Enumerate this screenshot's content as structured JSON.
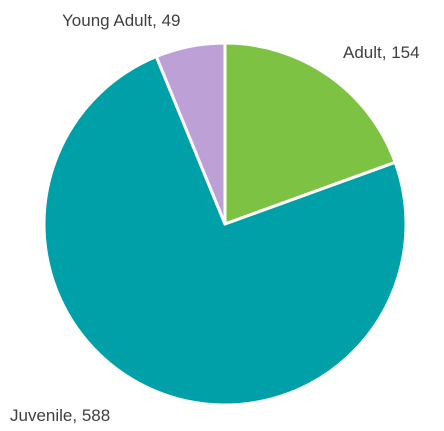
{
  "chart_data": {
    "type": "pie",
    "title": "",
    "slices": [
      {
        "label": "Adult",
        "value": 154,
        "color": "#7dc242",
        "data_label": "Adult, 154"
      },
      {
        "label": "Juvenile",
        "value": 588,
        "color": "#00a0a8",
        "data_label": "Juvenile, 588"
      },
      {
        "label": "Young Adult",
        "value": 49,
        "color": "#bca0d6",
        "data_label": "Young Adult, 49"
      }
    ],
    "start_angle_deg": 0,
    "direction": "clockwise",
    "legend": "none"
  }
}
